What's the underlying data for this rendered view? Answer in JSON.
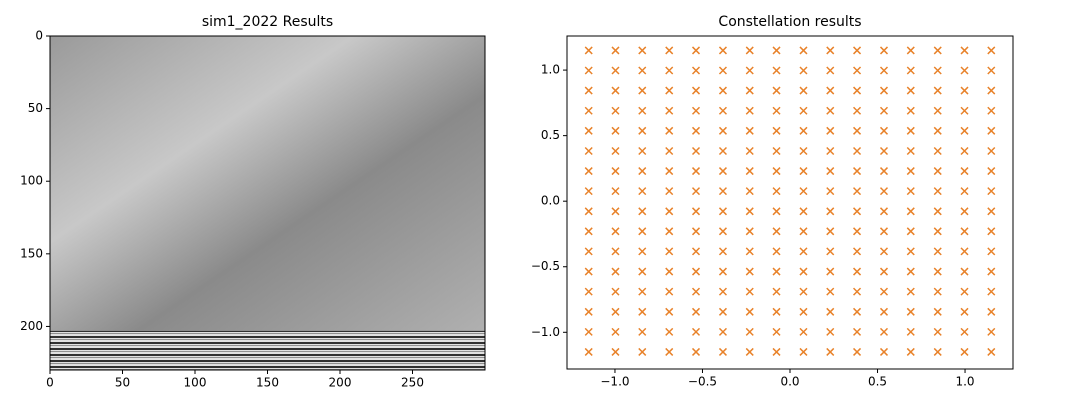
{
  "chart_data": [
    {
      "type": "image",
      "title": "sim1_2022 Results",
      "xlim": [
        0,
        300
      ],
      "xticks": [
        0,
        50,
        100,
        150,
        200,
        250
      ],
      "ylim": [
        230,
        0
      ],
      "yticks": [
        0,
        50,
        100,
        150,
        200
      ]
    },
    {
      "type": "scatter",
      "title": "Constellation results",
      "color": "#e8822a",
      "xlim": [
        -1.274,
        1.274
      ],
      "xticks": [
        {
          "value": -1.0,
          "label": "−1.0"
        },
        {
          "value": -0.5,
          "label": "−0.5"
        },
        {
          "value": 0.0,
          "label": "0.0"
        },
        {
          "value": 0.5,
          "label": "0.5"
        },
        {
          "value": 1.0,
          "label": "1.0"
        }
      ],
      "ylim": [
        -1.28,
        1.26
      ],
      "yticks": [
        {
          "value": -1.0,
          "label": "−1.0"
        },
        {
          "value": -0.5,
          "label": "−0.5"
        },
        {
          "value": 0.0,
          "label": "0.0"
        },
        {
          "value": 0.5,
          "label": "0.5"
        },
        {
          "value": 1.0,
          "label": "1.0"
        }
      ],
      "x": [
        -1.15,
        -0.997,
        -0.844,
        -0.69,
        -0.537,
        -0.383,
        -0.23,
        -0.077,
        0.077,
        0.23,
        0.383,
        0.537,
        0.69,
        0.844,
        0.997,
        1.15,
        -1.15,
        -0.997,
        -0.844,
        -0.69,
        -0.537,
        -0.383,
        -0.23,
        -0.077,
        0.077,
        0.23,
        0.383,
        0.537,
        0.69,
        0.844,
        0.997,
        1.15,
        -1.15,
        -0.997,
        -0.844,
        -0.69,
        -0.537,
        -0.383,
        -0.23,
        -0.077,
        0.077,
        0.23,
        0.383,
        0.537,
        0.69,
        0.844,
        0.997,
        1.15,
        -1.15,
        -0.997,
        -0.844,
        -0.69,
        -0.537,
        -0.383,
        -0.23,
        -0.077,
        0.077,
        0.23,
        0.383,
        0.537,
        0.69,
        0.844,
        0.997,
        1.15,
        -1.15,
        -0.997,
        -0.844,
        -0.69,
        -0.537,
        -0.383,
        -0.23,
        -0.077,
        0.077,
        0.23,
        0.383,
        0.537,
        0.69,
        0.844,
        0.997,
        1.15,
        -1.15,
        -0.997,
        -0.844,
        -0.69,
        -0.537,
        -0.383,
        -0.23,
        -0.077,
        0.077,
        0.23,
        0.383,
        0.537,
        0.69,
        0.844,
        0.997,
        1.15,
        -1.15,
        -0.997,
        -0.844,
        -0.69,
        -0.537,
        -0.383,
        -0.23,
        -0.077,
        0.077,
        0.23,
        0.383,
        0.537,
        0.69,
        0.844,
        0.997,
        1.15,
        -1.15,
        -0.997,
        -0.844,
        -0.69,
        -0.537,
        -0.383,
        -0.23,
        -0.077,
        0.077,
        0.23,
        0.383,
        0.537,
        0.69,
        0.844,
        0.997,
        1.15,
        -1.15,
        -0.997,
        -0.844,
        -0.69,
        -0.537,
        -0.383,
        -0.23,
        -0.077,
        0.077,
        0.23,
        0.383,
        0.537,
        0.69,
        0.844,
        0.997,
        1.15,
        -1.15,
        -0.997,
        -0.844,
        -0.69,
        -0.537,
        -0.383,
        -0.23,
        -0.077,
        0.077,
        0.23,
        0.383,
        0.537,
        0.69,
        0.844,
        0.997,
        1.15,
        -1.15,
        -0.997,
        -0.844,
        -0.69,
        -0.537,
        -0.383,
        -0.23,
        -0.077,
        0.077,
        0.23,
        0.383,
        0.537,
        0.69,
        0.844,
        0.997,
        1.15,
        -1.15,
        -0.997,
        -0.844,
        -0.69,
        -0.537,
        -0.383,
        -0.23,
        -0.077,
        0.077,
        0.23,
        0.383,
        0.537,
        0.69,
        0.844,
        0.997,
        1.15,
        -1.15,
        -0.997,
        -0.844,
        -0.69,
        -0.537,
        -0.383,
        -0.23,
        -0.077,
        0.077,
        0.23,
        0.383,
        0.537,
        0.69,
        0.844,
        0.997,
        1.15,
        -1.15,
        -0.997,
        -0.844,
        -0.69,
        -0.537,
        -0.383,
        -0.23,
        -0.077,
        0.077,
        0.23,
        0.383,
        0.537,
        0.69,
        0.844,
        0.997,
        1.15,
        -1.15,
        -0.997,
        -0.844,
        -0.69,
        -0.537,
        -0.383,
        -0.23,
        -0.077,
        0.077,
        0.23,
        0.383,
        0.537,
        0.69,
        0.844,
        0.997,
        1.15,
        -1.15,
        -0.997,
        -0.844,
        -0.69,
        -0.537,
        -0.383,
        -0.23,
        -0.077,
        0.077,
        0.23,
        0.383,
        0.537,
        0.69,
        0.844,
        0.997,
        1.15
      ],
      "y": [
        1.15,
        1.15,
        1.15,
        1.15,
        1.15,
        1.15,
        1.15,
        1.15,
        1.15,
        1.15,
        1.15,
        1.15,
        1.15,
        1.15,
        1.15,
        1.15,
        0.997,
        0.997,
        0.997,
        0.997,
        0.997,
        0.997,
        0.997,
        0.997,
        0.997,
        0.997,
        0.997,
        0.997,
        0.997,
        0.997,
        0.997,
        0.997,
        0.844,
        0.844,
        0.844,
        0.844,
        0.844,
        0.844,
        0.844,
        0.844,
        0.844,
        0.844,
        0.844,
        0.844,
        0.844,
        0.844,
        0.844,
        0.844,
        0.69,
        0.69,
        0.69,
        0.69,
        0.69,
        0.69,
        0.69,
        0.69,
        0.69,
        0.69,
        0.69,
        0.69,
        0.69,
        0.69,
        0.69,
        0.69,
        0.537,
        0.537,
        0.537,
        0.537,
        0.537,
        0.537,
        0.537,
        0.537,
        0.537,
        0.537,
        0.537,
        0.537,
        0.537,
        0.537,
        0.537,
        0.537,
        0.383,
        0.383,
        0.383,
        0.383,
        0.383,
        0.383,
        0.383,
        0.383,
        0.383,
        0.383,
        0.383,
        0.383,
        0.383,
        0.383,
        0.383,
        0.383,
        0.23,
        0.23,
        0.23,
        0.23,
        0.23,
        0.23,
        0.23,
        0.23,
        0.23,
        0.23,
        0.23,
        0.23,
        0.23,
        0.23,
        0.23,
        0.23,
        0.077,
        0.077,
        0.077,
        0.077,
        0.077,
        0.077,
        0.077,
        0.077,
        0.077,
        0.077,
        0.077,
        0.077,
        0.077,
        0.077,
        0.077,
        0.077,
        -0.077,
        -0.077,
        -0.077,
        -0.077,
        -0.077,
        -0.077,
        -0.077,
        -0.077,
        -0.077,
        -0.077,
        -0.077,
        -0.077,
        -0.077,
        -0.077,
        -0.077,
        -0.077,
        -0.23,
        -0.23,
        -0.23,
        -0.23,
        -0.23,
        -0.23,
        -0.23,
        -0.23,
        -0.23,
        -0.23,
        -0.23,
        -0.23,
        -0.23,
        -0.23,
        -0.23,
        -0.23,
        -0.383,
        -0.383,
        -0.383,
        -0.383,
        -0.383,
        -0.383,
        -0.383,
        -0.383,
        -0.383,
        -0.383,
        -0.383,
        -0.383,
        -0.383,
        -0.383,
        -0.383,
        -0.383,
        -0.537,
        -0.537,
        -0.537,
        -0.537,
        -0.537,
        -0.537,
        -0.537,
        -0.537,
        -0.537,
        -0.537,
        -0.537,
        -0.537,
        -0.537,
        -0.537,
        -0.537,
        -0.537,
        -0.69,
        -0.69,
        -0.69,
        -0.69,
        -0.69,
        -0.69,
        -0.69,
        -0.69,
        -0.69,
        -0.69,
        -0.69,
        -0.69,
        -0.69,
        -0.69,
        -0.69,
        -0.69,
        -0.844,
        -0.844,
        -0.844,
        -0.844,
        -0.844,
        -0.844,
        -0.844,
        -0.844,
        -0.844,
        -0.844,
        -0.844,
        -0.844,
        -0.844,
        -0.844,
        -0.844,
        -0.844,
        -0.997,
        -0.997,
        -0.997,
        -0.997,
        -0.997,
        -0.997,
        -0.997,
        -0.997,
        -0.997,
        -0.997,
        -0.997,
        -0.997,
        -0.997,
        -0.997,
        -0.997,
        -0.997,
        -1.15,
        -1.15,
        -1.15,
        -1.15,
        -1.15,
        -1.15,
        -1.15,
        -1.15,
        -1.15,
        -1.15,
        -1.15,
        -1.15,
        -1.15,
        -1.15,
        -1.15,
        -1.15
      ]
    }
  ]
}
